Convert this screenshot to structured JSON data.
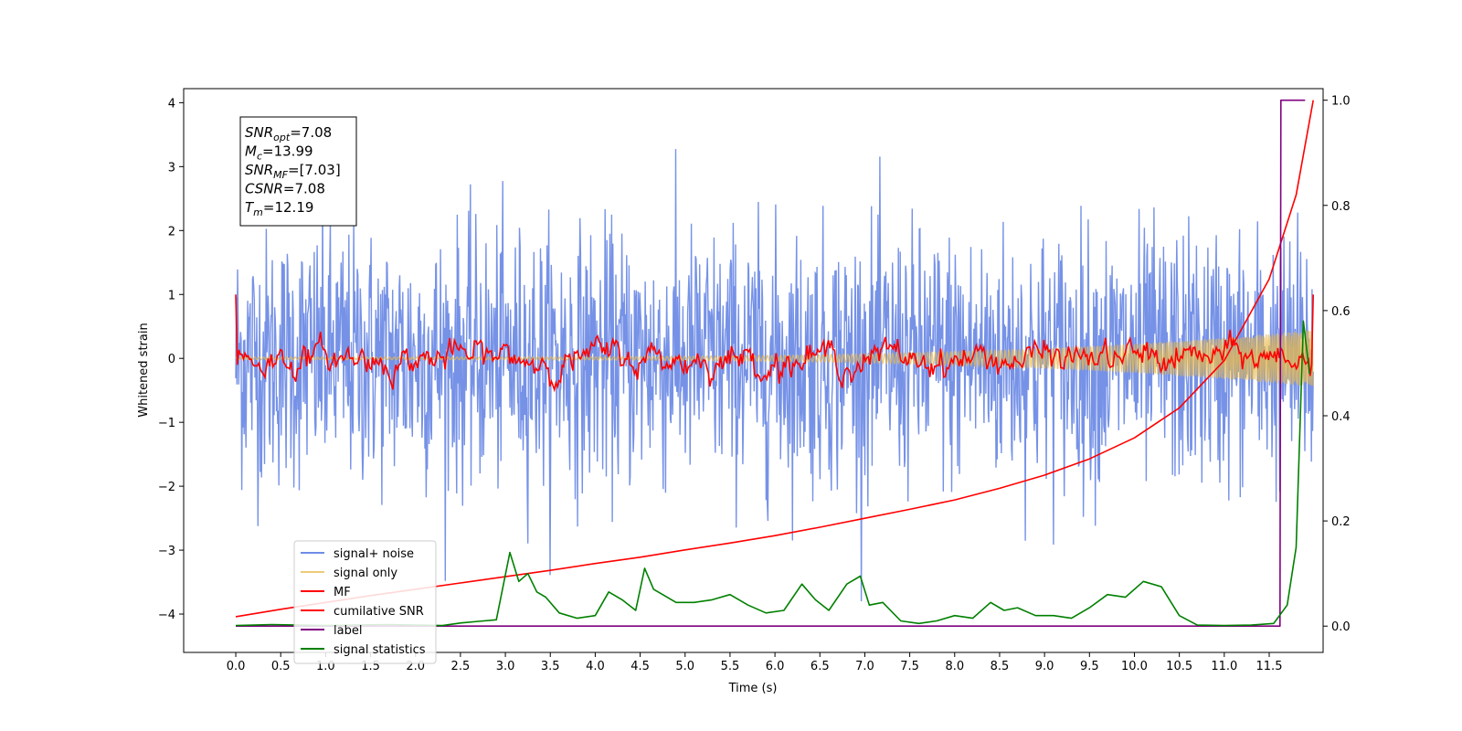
{
  "chart_data": {
    "type": "line",
    "xlabel": "Time (s)",
    "ylabel": "Whitened strain",
    "xlim": [
      -0.58,
      12.1
    ],
    "ylim_left": [
      -4.6,
      4.22
    ],
    "ylim_right": [
      -0.05,
      1.022
    ],
    "x_ticks": [
      0.0,
      0.5,
      1.0,
      1.5,
      2.0,
      2.5,
      3.0,
      3.5,
      4.0,
      4.5,
      5.0,
      5.5,
      6.0,
      6.5,
      7.0,
      7.5,
      8.0,
      8.5,
      9.0,
      9.5,
      10.0,
      10.5,
      11.0,
      11.5
    ],
    "x_tick_labels": [
      "0.0",
      "0.5",
      "1.0",
      "1.5",
      "2.0",
      "2.5",
      "3.0",
      "3.5",
      "4.0",
      "4.5",
      "5.0",
      "5.5",
      "6.0",
      "6.5",
      "7.0",
      "7.5",
      "8.0",
      "8.5",
      "9.0",
      "9.5",
      "10.0",
      "10.5",
      "11.0",
      "11.5"
    ],
    "y_left_ticks": [
      4,
      3,
      2,
      1,
      0,
      -1,
      -2,
      -3,
      -4
    ],
    "y_left_tick_labels": [
      "4",
      "3",
      "2",
      "1",
      "0",
      "−1",
      "−2",
      "−3",
      "−4"
    ],
    "y_right_ticks": [
      1.0,
      0.8,
      0.6,
      0.4,
      0.2,
      0.0
    ],
    "y_right_tick_labels": [
      "1.0",
      "0.8",
      "0.6",
      "0.4",
      "0.2",
      "0.0"
    ],
    "legend_position": "lower-left",
    "annotation": [
      {
        "main": "SNR",
        "sub": "opt",
        "value": "=7.08"
      },
      {
        "main": "M",
        "sub": "c",
        "value": "=13.99"
      },
      {
        "main": "SNR",
        "sub": "MF",
        "value": "=[7.03]"
      },
      {
        "main": "CSNR",
        "sub": "",
        "value": "=7.08"
      },
      {
        "main": "T",
        "sub": "m",
        "value": "=12.19"
      }
    ],
    "series": [
      {
        "name": "signal+ noise",
        "color": "#6f8ce6",
        "axis": "left",
        "kind": "noise",
        "x_range": [
          0.0,
          11.99
        ],
        "envelope_sd": 1.0
      },
      {
        "name": "signal only",
        "color": "#e8b84a",
        "axis": "left",
        "kind": "chirp",
        "x_range": [
          0.0,
          11.99
        ],
        "amplitude_start": 0.02,
        "amplitude_end": 0.45
      },
      {
        "name": "MF",
        "color": "#ff0000",
        "axis": "left",
        "kind": "filtered",
        "x_range": [
          0.0,
          11.99
        ],
        "start_value": 1.0,
        "end_value": 1.0
      },
      {
        "name": "cumilative SNR",
        "color": "#ff0000",
        "axis": "right",
        "x": [
          0.0,
          0.5,
          1.0,
          1.5,
          2.0,
          2.5,
          3.0,
          3.5,
          4.0,
          4.5,
          5.0,
          5.5,
          6.0,
          6.5,
          7.0,
          7.5,
          8.0,
          8.5,
          9.0,
          9.5,
          10.0,
          10.5,
          11.0,
          11.5,
          11.8,
          11.99
        ],
        "y": [
          0.018,
          0.032,
          0.045,
          0.058,
          0.07,
          0.082,
          0.094,
          0.106,
          0.119,
          0.131,
          0.145,
          0.158,
          0.172,
          0.188,
          0.205,
          0.222,
          0.24,
          0.262,
          0.287,
          0.318,
          0.358,
          0.415,
          0.505,
          0.66,
          0.82,
          1.0
        ]
      },
      {
        "name": "label",
        "color": "#800080",
        "axis": "right",
        "x": [
          0.0,
          11.62,
          11.63,
          11.9
        ],
        "y": [
          0.0,
          0.0,
          1.0,
          1.0
        ]
      },
      {
        "name": "signal statistics",
        "color": "#008000",
        "axis": "right",
        "x": [
          0.0,
          0.2,
          0.4,
          0.7,
          1.0,
          1.3,
          1.7,
          2.0,
          2.3,
          2.5,
          2.7,
          2.9,
          3.05,
          3.15,
          3.25,
          3.35,
          3.45,
          3.6,
          3.8,
          4.0,
          4.15,
          4.3,
          4.45,
          4.55,
          4.65,
          4.75,
          4.9,
          5.1,
          5.3,
          5.5,
          5.7,
          5.9,
          6.1,
          6.3,
          6.45,
          6.6,
          6.8,
          6.95,
          7.05,
          7.2,
          7.4,
          7.6,
          7.8,
          8.0,
          8.2,
          8.4,
          8.55,
          8.7,
          8.9,
          9.1,
          9.3,
          9.5,
          9.7,
          9.9,
          10.1,
          10.3,
          10.5,
          10.7,
          11.0,
          11.3,
          11.55,
          11.7,
          11.8,
          11.88,
          11.95
        ],
        "y": [
          0.001,
          0.002,
          0.003,
          0.002,
          0.001,
          0.002,
          0.003,
          0.002,
          0.001,
          0.006,
          0.009,
          0.012,
          0.14,
          0.085,
          0.1,
          0.065,
          0.055,
          0.025,
          0.015,
          0.02,
          0.065,
          0.05,
          0.03,
          0.11,
          0.07,
          0.06,
          0.045,
          0.045,
          0.05,
          0.06,
          0.04,
          0.025,
          0.03,
          0.08,
          0.05,
          0.03,
          0.08,
          0.095,
          0.04,
          0.045,
          0.01,
          0.005,
          0.01,
          0.02,
          0.015,
          0.045,
          0.03,
          0.035,
          0.02,
          0.02,
          0.015,
          0.035,
          0.06,
          0.055,
          0.085,
          0.075,
          0.02,
          0.002,
          0.001,
          0.002,
          0.005,
          0.04,
          0.15,
          0.58,
          0.48
        ]
      }
    ]
  }
}
